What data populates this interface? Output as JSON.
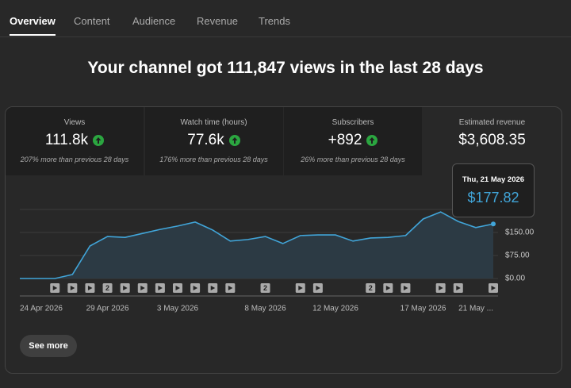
{
  "tabs": [
    {
      "label": "Overview",
      "active": true
    },
    {
      "label": "Content",
      "active": false
    },
    {
      "label": "Audience",
      "active": false
    },
    {
      "label": "Revenue",
      "active": false
    },
    {
      "label": "Trends",
      "active": false
    }
  ],
  "headline": "Your channel got 111,847 views in the last 28 days",
  "metrics": [
    {
      "label": "Views",
      "value": "111.8k",
      "trend": "up",
      "change": "207% more than previous 28 days"
    },
    {
      "label": "Watch time (hours)",
      "value": "77.6k",
      "trend": "up",
      "change": "176% more than previous 28 days"
    },
    {
      "label": "Subscribers",
      "value": "+892",
      "trend": "up",
      "change": "26% more than previous 28 days"
    },
    {
      "label": "Estimated revenue",
      "value": "$3,608.35",
      "selected": true
    }
  ],
  "chart_data": {
    "type": "area",
    "color": "#41a5d9",
    "fill": "#2c3a44",
    "categories": [
      "24 Apr 2026",
      null,
      null,
      null,
      null,
      "29 Apr 2026",
      null,
      null,
      null,
      "3 May 2026",
      null,
      null,
      null,
      null,
      "8 May 2026",
      null,
      null,
      null,
      "12 May 2026",
      null,
      null,
      null,
      null,
      "17 May 2026",
      null,
      null,
      null,
      "21 May ..."
    ],
    "values": [
      0,
      0,
      0,
      13,
      106,
      137,
      134,
      147,
      160,
      171,
      184,
      158,
      122,
      127,
      137,
      114,
      140,
      142,
      142,
      122,
      132,
      134,
      140,
      194,
      217,
      186,
      166,
      177.82
    ],
    "video_counts": [
      null,
      null,
      1,
      1,
      1,
      2,
      1,
      1,
      1,
      1,
      1,
      1,
      1,
      null,
      2,
      null,
      1,
      1,
      null,
      null,
      2,
      1,
      1,
      null,
      1,
      1,
      null,
      1
    ],
    "ylim": [
      0,
      225
    ],
    "yticks": [
      {
        "value": 0,
        "label": "$0.00"
      },
      {
        "value": 75,
        "label": "$75.00"
      },
      {
        "value": 150,
        "label": "$150.00"
      }
    ],
    "grid": true,
    "tooltip": {
      "title": "Thu, 21 May 2026",
      "value": "$177.82"
    }
  },
  "button": "See more"
}
